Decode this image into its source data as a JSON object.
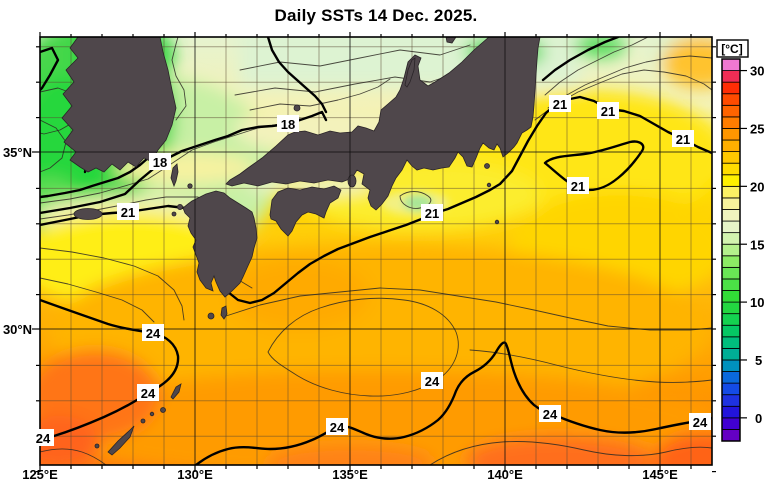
{
  "title": "Daily SSTs 14 Dec. 2025.",
  "axes": {
    "lon_ticks": [
      {
        "label": "125°E"
      },
      {
        "label": "130°E"
      },
      {
        "label": "135°E"
      },
      {
        "label": "140°E"
      },
      {
        "label": "145°E"
      }
    ],
    "lat_ticks": [
      {
        "label": "35°N"
      },
      {
        "label": "30°N"
      }
    ]
  },
  "colorbar": {
    "unit": "[°C]",
    "tick_labels": [
      "30",
      "25",
      "20",
      "15",
      "10",
      "5",
      "0"
    ],
    "cells_bottom_to_top": [
      "#6400c3",
      "#4100d2",
      "#2214dc",
      "#1e32e1",
      "#144be6",
      "#0a69dc",
      "#0091be",
      "#00af96",
      "#00be7d",
      "#05c864",
      "#14d250",
      "#23d741",
      "#32dc37",
      "#4be146",
      "#69e655",
      "#8ceb64",
      "#b4f08c",
      "#d2f3af",
      "#e6f4c8",
      "#f0f3be",
      "#f6f29b",
      "#fbf164",
      "#fff000",
      "#ffdc00",
      "#ffc800",
      "#ffaf00",
      "#ff9600",
      "#ff7d00",
      "#ff6400",
      "#ff4b00",
      "#ff2d05",
      "#f02d55",
      "#f078d2"
    ]
  },
  "contour_labels": [
    {
      "text": "18"
    },
    {
      "text": "18"
    },
    {
      "text": "21"
    },
    {
      "text": "21"
    },
    {
      "text": "21"
    },
    {
      "text": "21"
    },
    {
      "text": "21"
    },
    {
      "text": "21"
    },
    {
      "text": "24"
    },
    {
      "text": "24"
    },
    {
      "text": "24"
    },
    {
      "text": "24"
    },
    {
      "text": "24"
    },
    {
      "text": "24"
    },
    {
      "text": "24"
    }
  ],
  "map_colors": {
    "land": "#4f474b",
    "cold_sea_green": "#2ed73c",
    "mid_sea_yellow": "#fff000",
    "warm_sea_orange": "#ffa000",
    "hot_sea_red_orange": "#ff641e"
  },
  "chart_data": {
    "type": "heatmap",
    "title": "Daily SSTs 14 Dec. 2025.",
    "description": "Daily sea surface temperature analysis map around Japan with 1°C contours (bold every 3°C).",
    "region": {
      "lon_range": [
        "125°E",
        "146.7°E"
      ],
      "lat_range": [
        "26.3°N",
        "38°N"
      ]
    },
    "x_tick_labels": [
      "125°E",
      "130°E",
      "135°E",
      "140°E",
      "145°E"
    ],
    "y_tick_labels": [
      "35°N",
      "30°N"
    ],
    "colorbar": {
      "unit": "°C",
      "range": [
        -2,
        31
      ],
      "labeled_ticks": [
        0,
        5,
        10,
        15,
        20,
        25,
        30
      ]
    },
    "contour_interval_c": 1,
    "bold_contour_interval_c": 3,
    "labeled_isotherms_c": [
      18,
      21,
      24
    ],
    "contour_label_points": [
      {
        "value": 18,
        "lon": 128.9,
        "lat": 34.7
      },
      {
        "value": 18,
        "lon": 133.0,
        "lat": 35.8
      },
      {
        "value": 21,
        "lon": 127.8,
        "lat": 33.3
      },
      {
        "value": 21,
        "lon": 137.6,
        "lat": 33.3
      },
      {
        "value": 21,
        "lon": 141.8,
        "lat": 36.3
      },
      {
        "value": 21,
        "lon": 143.3,
        "lat": 36.2
      },
      {
        "value": 21,
        "lon": 145.7,
        "lat": 35.4
      },
      {
        "value": 21,
        "lon": 142.4,
        "lat": 34.0
      },
      {
        "value": 24,
        "lon": 128.6,
        "lat": 29.9
      },
      {
        "value": 24,
        "lon": 128.5,
        "lat": 28.3
      },
      {
        "value": 24,
        "lon": 125.0,
        "lat": 27.0
      },
      {
        "value": 24,
        "lon": 134.6,
        "lat": 27.3
      },
      {
        "value": 24,
        "lon": 137.6,
        "lat": 28.6
      },
      {
        "value": 24,
        "lon": 141.5,
        "lat": 27.7
      },
      {
        "value": 24,
        "lon": 146.2,
        "lat": 27.5
      }
    ],
    "legend_position": "right-colorbar",
    "grid": "1-degree graticule, bold at 5-degree lines"
  }
}
